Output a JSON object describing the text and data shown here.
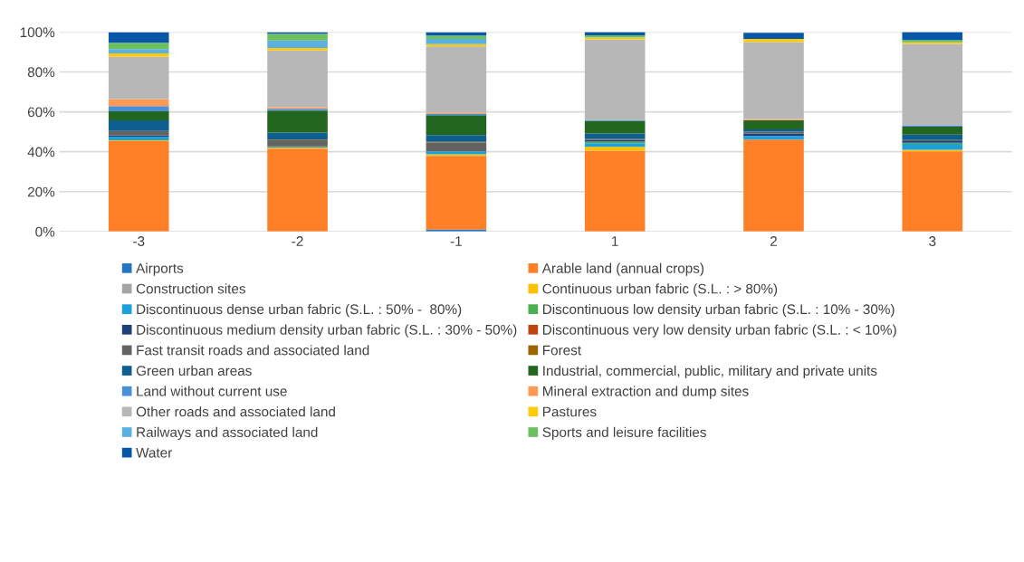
{
  "chart_data": {
    "type": "bar",
    "stacked": true,
    "categories": [
      "-3",
      "-2",
      "-1",
      "1",
      "2",
      "3"
    ],
    "ylim": [
      0,
      100
    ],
    "yticks": [
      {
        "value": 0,
        "label": "0%"
      },
      {
        "value": 20,
        "label": "20%"
      },
      {
        "value": 40,
        "label": "40%"
      },
      {
        "value": 60,
        "label": "60%"
      },
      {
        "value": 80,
        "label": "80%"
      },
      {
        "value": 100,
        "label": "100%"
      }
    ],
    "grid": "y",
    "legend": "bottom",
    "series": [
      {
        "name": "Airports",
        "color": "#2574c8",
        "values": [
          0,
          0,
          1.1,
          0,
          0,
          0
        ]
      },
      {
        "name": "Arable land (annual crops)",
        "color": "#ff7f27",
        "values": [
          45.3,
          41.5,
          36.8,
          40.5,
          46.1,
          40.2
        ]
      },
      {
        "name": "Construction sites",
        "color": "#a5a5a5",
        "values": [
          0,
          0,
          0,
          0,
          0,
          0
        ]
      },
      {
        "name": "Continuous urban fabric (S.L. : > 80%)",
        "color": "#ffc000",
        "values": [
          0.5,
          0.6,
          0.8,
          2.0,
          null,
          0.8
        ]
      },
      {
        "name": "Discontinuous dense urban fabric (S.L. : 50% -  80%)",
        "color": "#1ea0dc",
        "values": [
          1.8,
          0.6,
          1.5,
          1.8,
          1.8,
          2.9
        ]
      },
      {
        "name": "Discontinuous low density urban fabric (S.L. : 10% - 30%)",
        "color": "#4caf50",
        "values": [
          0,
          0,
          0,
          0.8,
          0,
          0.6
        ]
      },
      {
        "name": "Discontinuous medium density urban fabric (S.L. : 30% - 50%)",
        "color": "#1f3f7a",
        "values": [
          0.5,
          0,
          0,
          0.8,
          1.2,
          0.8
        ]
      },
      {
        "name": "Discontinuous very low density urban fabric (S.L. : < 10%)",
        "color": "#c0440e",
        "values": [
          0,
          0,
          0,
          0,
          0,
          0
        ]
      },
      {
        "name": "Fast transit roads and associated land",
        "color": "#636363",
        "values": [
          2.3,
          3.1,
          4.4,
          0.6,
          0.9,
          0.6
        ]
      },
      {
        "name": "Forest",
        "color": "#9c6500",
        "values": [
          0,
          0.3,
          0.3,
          0,
          0,
          0
        ]
      },
      {
        "name": "Green urban areas",
        "color": "#0e5f8f",
        "values": [
          5.3,
          3.5,
          3.5,
          2.7,
          1.2,
          2.7
        ]
      },
      {
        "name": "Industrial, commercial, public, military and private units",
        "color": "#22661f",
        "values": [
          4.6,
          11.0,
          9.9,
          6.3,
          4.6,
          4.0
        ]
      },
      {
        "name": "Land without current use",
        "color": "#4a8fd8",
        "values": [
          2.6,
          0.9,
          0.8,
          0.5,
          0,
          0.6
        ]
      },
      {
        "name": "Mineral extraction and dump sites",
        "color": "#ff9a55",
        "values": [
          3.5,
          0.8,
          0.6,
          0,
          0.6,
          0
        ]
      },
      {
        "name": "Other roads and associated land",
        "color": "#b7b7b7",
        "values": [
          21.2,
          28.5,
          33.1,
          40.3,
          38.6,
          40.8
        ]
      },
      {
        "name": "Pastures",
        "color": "#ffc90e",
        "values": [
          1.7,
          1.2,
          1.1,
          0.9,
          1.5,
          0.8
        ]
      },
      {
        "name": "Railways and associated land",
        "color": "#5ab0e0",
        "values": [
          2.1,
          3.8,
          2.6,
          0,
          0,
          0
        ]
      },
      {
        "name": "Sports and leisure facilities",
        "color": "#6cc060",
        "values": [
          3.2,
          3.4,
          1.8,
          1.2,
          0,
          1.2
        ]
      },
      {
        "name": "Water",
        "color": "#0856a8",
        "values": [
          5.4,
          0.8,
          1.7,
          1.7,
          3.1,
          4.1
        ]
      }
    ]
  }
}
